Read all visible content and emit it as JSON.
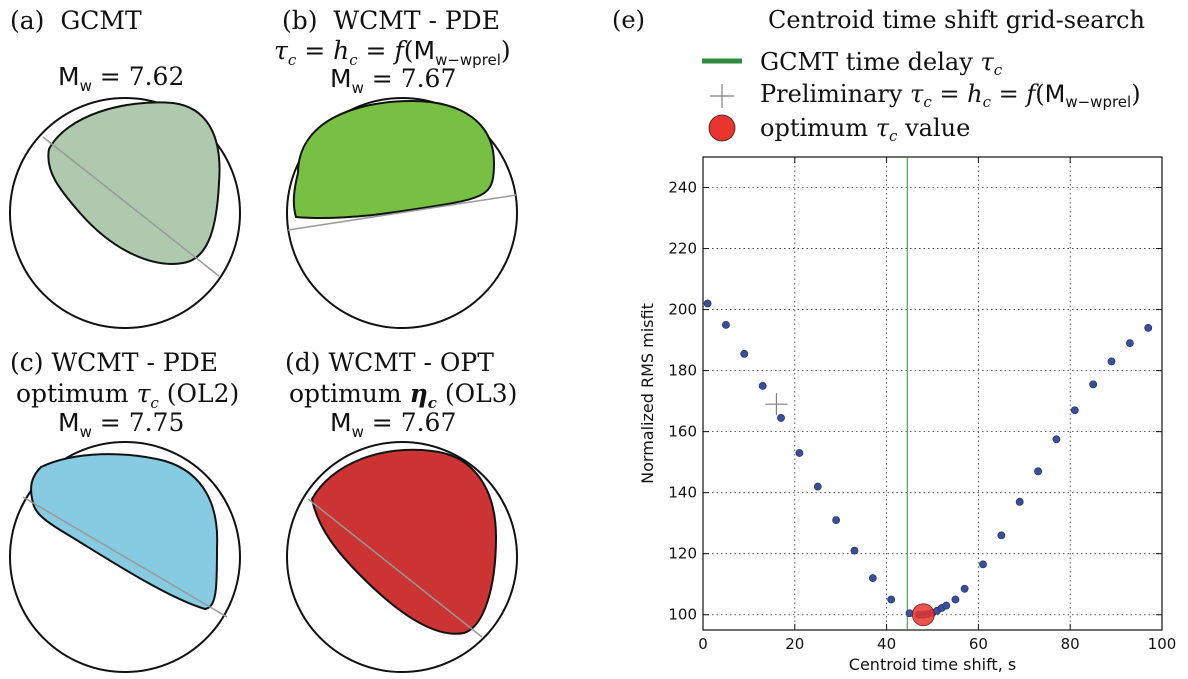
{
  "beachballs": {
    "a": {
      "tag": "(a)",
      "name": "GCMT",
      "mag_value": "7.62",
      "fill": "#aec9ae"
    },
    "b": {
      "tag": "(b)",
      "name": "WCMT - PDE",
      "sub_var": "w−wprel",
      "mag_value": "7.67",
      "fill": "#77c043"
    },
    "c": {
      "tag": "(c)",
      "name": "WCMT - PDE",
      "line2_pre": "optimum",
      "line2_post": "(OL2)",
      "mag_value": "7.75",
      "fill": "#87cbe3"
    },
    "d": {
      "tag": "(d)",
      "name": "WCMT - OPT",
      "line2_pre": "optimum",
      "line2_post": "(OL3)",
      "mag_value": "7.67",
      "fill": "#cc3333"
    }
  },
  "chart_data": {
    "type": "scatter",
    "panel_tag": "(e)",
    "title": "Centroid time shift grid-search",
    "xlabel": "Centroid time shift, s",
    "ylabel": "Normalized RMS misfit",
    "xlim": [
      0,
      100
    ],
    "ylim": [
      95,
      250
    ],
    "xticks": [
      0,
      20,
      40,
      60,
      80,
      100
    ],
    "yticks": [
      100,
      120,
      140,
      160,
      180,
      200,
      220,
      240
    ],
    "grid": true,
    "legend_position": "top, above plot",
    "legend": {
      "gcmt_label": "GCMT time delay",
      "prelim_label": "Preliminary",
      "optimum_label": "optimum",
      "optimum_label_post": "value"
    },
    "colors": {
      "points": "#3b4e9a",
      "gcmt_line": "#2e8b3e",
      "optimum": "#e8352e",
      "prelim": "#808080"
    },
    "gcmt_time_delay": 44.5,
    "preliminary": {
      "x": 16,
      "y": 169
    },
    "optimum": {
      "x": 48,
      "y": 100
    },
    "series": [
      {
        "x": [
          1,
          5,
          9,
          13,
          17,
          21,
          25,
          29,
          33,
          37,
          41,
          45,
          47,
          48,
          49,
          50,
          51,
          52,
          53,
          55,
          57,
          61,
          65,
          69,
          73,
          77,
          81,
          85,
          89,
          93,
          97
        ],
        "y": [
          202,
          195,
          185.5,
          175,
          164.5,
          153,
          142,
          131,
          121,
          112,
          105,
          100.5,
          100,
          100,
          100.2,
          100.6,
          101.3,
          102.2,
          103,
          105,
          108.5,
          116.5,
          126,
          137,
          147,
          157.5,
          167,
          175.5,
          183,
          189,
          194
        ]
      }
    ]
  }
}
